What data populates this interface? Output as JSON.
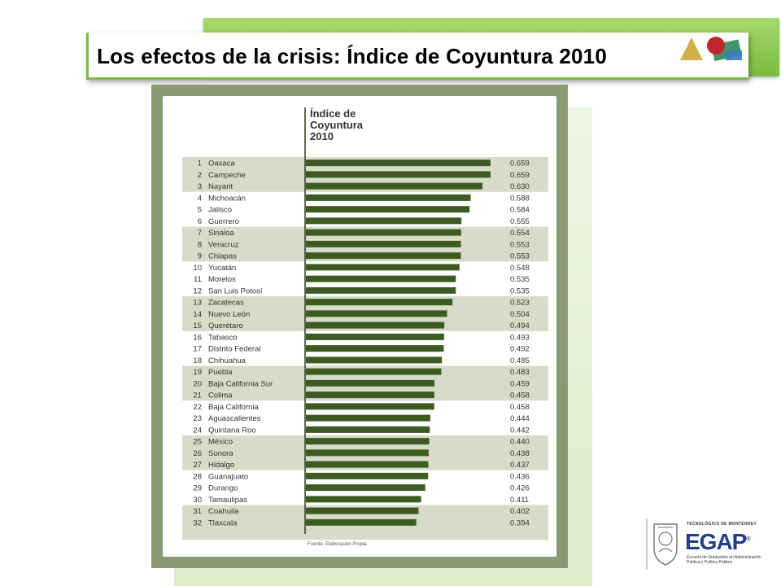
{
  "slide": {
    "title": "Los efectos de la crisis: Índice de Coyuntura 2010"
  },
  "logo": {
    "institution": "TECNOLÓGICO DE MONTERREY",
    "name": "EGAP",
    "registered": "®",
    "subtitle": "Escuela de Graduados en Administración Pública y Política Pública"
  },
  "colors": {
    "bar": "#3e5a23",
    "band": "#d6dcc7",
    "frame": "#8c9a74",
    "accent": "#7cbc43",
    "logo_blue": "#1f3f8a"
  },
  "chart_data": {
    "type": "bar",
    "orientation": "horizontal",
    "title": "Índice de Coyuntura 2010",
    "source": "Fuente: Elaboración Propia",
    "xlim": [
      0,
      0.659
    ],
    "ranks": [
      "1",
      "2",
      "3",
      "4",
      "5",
      "6",
      "7",
      "8",
      "9",
      "10",
      "11",
      "12",
      "13",
      "14",
      "15",
      "16",
      "17",
      "18",
      "19",
      "20",
      "21",
      "22",
      "23",
      "24",
      "25",
      "26",
      "27",
      "28",
      "29",
      "30",
      "31",
      "32"
    ],
    "categories": [
      "Oaxaca",
      "Campeche",
      "Nayarit",
      "Michoacán",
      "Jalisco",
      "Guerrero",
      "Sinaloa",
      "Veracruz",
      "Chiapas",
      "Yucatán",
      "Morelos",
      "San Luis Potosí",
      "Zacatecas",
      "Nuevo León",
      "Querétaro",
      "Tabasco",
      "Distrito Federal",
      "Chihuahua",
      "Puebla",
      "Baja California Sur",
      "Colima",
      "Baja California",
      "Aguascalientes",
      "Quintana Roo",
      "México",
      "Sonora",
      "Hidalgo",
      "Guanajuato",
      "Durango",
      "Tamaulipas",
      "Coahuila",
      "Tlaxcala"
    ],
    "values": [
      0.659,
      0.659,
      0.63,
      0.588,
      0.584,
      0.555,
      0.554,
      0.553,
      0.553,
      0.548,
      0.535,
      0.535,
      0.523,
      0.504,
      0.494,
      0.493,
      0.492,
      0.485,
      0.483,
      0.459,
      0.458,
      0.458,
      0.444,
      0.442,
      0.44,
      0.438,
      0.437,
      0.436,
      0.426,
      0.411,
      0.402,
      0.394
    ],
    "value_labels": [
      "0.659",
      "0.659",
      "0.630",
      "0.588",
      "0.584",
      "0.555",
      "0.554",
      "0.553",
      "0.553",
      "0.548",
      "0.535",
      "0.535",
      "0.523",
      "0.504",
      "0.494",
      "0.493",
      "0.492",
      "0.485",
      "0.483",
      "0.459",
      "0.458",
      "0.458",
      "0.444",
      "0.442",
      "0.440",
      "0.438",
      "0.437",
      "0.436",
      "0.426",
      "0.411",
      "0.402",
      "0.394"
    ],
    "band_groups_of": 3,
    "grid": false,
    "legend": "none"
  }
}
